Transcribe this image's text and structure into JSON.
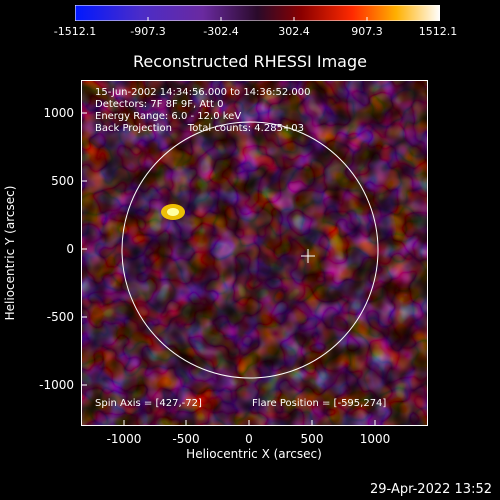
{
  "colorbar": {
    "ticks": [
      "-1512.1",
      "-907.3",
      "-302.4",
      "302.4",
      "907.3",
      "1512.1"
    ]
  },
  "plot": {
    "title": "Reconstructed RHESSI Image",
    "info_lines": [
      "15-Jun-2002 14:34:56.000 to 14:36:52.000",
      "Detectors: 7F 8F 9F, Att 0",
      "Energy Range: 6.0 - 12.0 keV",
      "Back Projection     Total counts: 4.285+03"
    ],
    "spin_axis": "Spin Axis = [427,-72]",
    "flare_position": "Flare Position = [-595,274]",
    "x_label": "Heliocentric X (arcsec)",
    "y_label": "Heliocentric Y (arcsec)",
    "x_ticks": [
      "-1000",
      "-500",
      "0",
      "500",
      "1000"
    ],
    "y_ticks": [
      "1000",
      "500",
      "0",
      "-500",
      "-1000"
    ],
    "colors": {
      "frame": "#ffffff",
      "background": "#000000"
    }
  },
  "timestamp": "29-Apr-2022 13:52"
}
